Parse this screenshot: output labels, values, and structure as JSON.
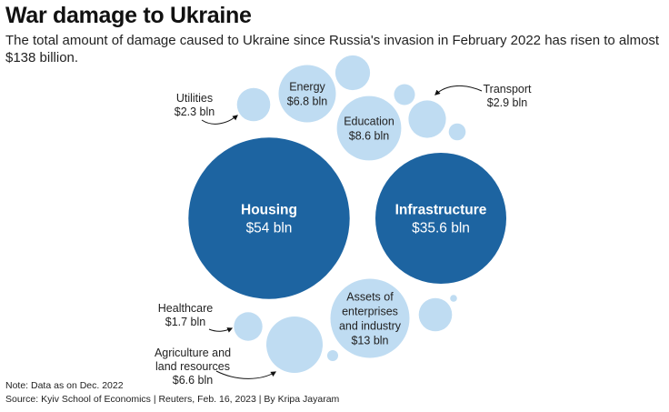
{
  "title": "War damage to Ukraine",
  "subtitle": "The total amount of damage caused to Ukraine since Russia's invasion in February 2022 has risen to almost $138 billion.",
  "note": "Note: Data as on Dec. 2022",
  "source": "Source: Kyiv School of Economics | Reuters, Feb. 16, 2023 | By Kripa Jayaram",
  "colors": {
    "large_bubble": "#1d64a1",
    "small_bubble": "#bfdcf2",
    "text_dark": "#222222",
    "text_light": "#ffffff"
  },
  "chart_data": {
    "type": "bubble",
    "unit": "$ bln",
    "title": "War damage to Ukraine",
    "categories": [
      {
        "name": "Housing",
        "value": 54,
        "label": "$54 bln"
      },
      {
        "name": "Infrastructure",
        "value": 35.6,
        "label": "$35.6 bln"
      },
      {
        "name": "Assets of enterprises and industry",
        "value": 13,
        "label": "$13 bln"
      },
      {
        "name": "Education",
        "value": 8.6,
        "label": "$8.6 bln"
      },
      {
        "name": "Energy",
        "value": 6.8,
        "label": "$6.8 bln"
      },
      {
        "name": "Agriculture and land resources",
        "value": 6.6,
        "label": "$6.6 bln"
      },
      {
        "name": "Transport",
        "value": 2.9,
        "label": "$2.9 bln"
      },
      {
        "name": "Utilities",
        "value": 2.3,
        "label": "$2.3 bln"
      },
      {
        "name": "Healthcare",
        "value": 1.7,
        "label": "$1.7 bln"
      }
    ],
    "unlabeled_bubbles": [
      {
        "value": 2.5
      },
      {
        "value": 0.9
      },
      {
        "value": 0.6
      },
      {
        "value": 2.3
      },
      {
        "value": 0.25
      },
      {
        "value": 0.1
      }
    ]
  }
}
